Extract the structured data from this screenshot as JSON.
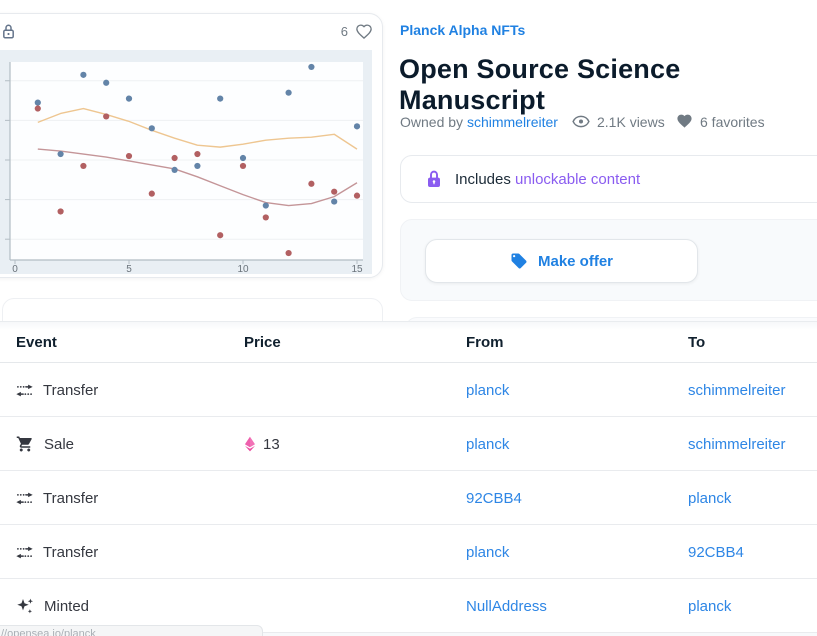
{
  "colors": {
    "accent_blue": "#2081e2",
    "link_blue": "#2e86e5",
    "purple": "#8a5cf0",
    "text_dark": "#04111d",
    "text_gray": "#707a83",
    "icon_dark": "#353840",
    "eth_pink_upper": "#f272b6",
    "eth_pink_lower": "#ec4aa0",
    "chart_bg": "#e9eff4",
    "plot_bg": "#fdfeff",
    "grid": "#eef1f3",
    "axis": "#b3bdc4",
    "tick_text": "#6a737b"
  },
  "media_card": {
    "favorite_count": "6"
  },
  "header": {
    "collection": "Planck Alpha NFTs",
    "title": "Open Source Science Manuscript",
    "owned_by_label": "Owned by",
    "owner": "schimmelreiter",
    "views": "2.1K views",
    "favorites": "6 favorites"
  },
  "unlockable": {
    "prefix": "Includes",
    "link_text": "unlockable content"
  },
  "offer": {
    "button_label": "Make offer"
  },
  "activity_table": {
    "columns": [
      "Event",
      "Price",
      "From",
      "To"
    ],
    "rows": [
      {
        "event": "Transfer",
        "icon": "transfer-icon",
        "price": "",
        "from": "planck",
        "to": "schimmelreiter"
      },
      {
        "event": "Sale",
        "icon": "cart-icon",
        "price": "13",
        "from": "planck",
        "to": "schimmelreiter"
      },
      {
        "event": "Transfer",
        "icon": "transfer-icon",
        "price": "",
        "from": "92CBB4",
        "to": "planck"
      },
      {
        "event": "Transfer",
        "icon": "transfer-icon",
        "price": "",
        "from": "planck",
        "to": "92CBB4"
      },
      {
        "event": "Minted",
        "icon": "sparkles-icon",
        "price": "",
        "from": "NullAddress",
        "to": "planck"
      }
    ]
  },
  "status_bar": {
    "link_preview": "//opensea.io/planck"
  },
  "chart_data": {
    "type": "scatter",
    "title": "",
    "xlabel": "",
    "ylabel": "",
    "x": [
      1,
      2,
      3,
      4,
      5,
      6,
      7,
      8,
      9,
      10,
      11,
      12,
      13,
      14,
      15
    ],
    "series": [
      {
        "name": "blue-points",
        "color": "#6384a8",
        "values": [
          7.9,
          5.3,
          9.3,
          8.9,
          8.1,
          6.6,
          4.5,
          4.7,
          8.1,
          5.1,
          2.7,
          8.4,
          9.7,
          2.9,
          6.7
        ]
      },
      {
        "name": "red-points",
        "color": "#b26062",
        "values": [
          7.6,
          2.4,
          4.7,
          7.2,
          5.2,
          3.3,
          5.1,
          5.3,
          1.2,
          4.7,
          2.1,
          0.3,
          3.8,
          3.4,
          3.2
        ]
      }
    ],
    "trend_lines": [
      {
        "name": "orange-trend",
        "color": "#eec691",
        "values": [
          6.9,
          7.35,
          7.6,
          7.3,
          6.95,
          6.5,
          6.1,
          5.75,
          5.65,
          5.8,
          6.0,
          6.1,
          6.15,
          6.3,
          5.55
        ]
      },
      {
        "name": "rose-trend",
        "color": "#c49598",
        "values": [
          5.55,
          5.45,
          5.3,
          5.15,
          4.95,
          4.75,
          4.55,
          4.15,
          3.7,
          3.25,
          2.85,
          2.7,
          2.8,
          3.15,
          3.85
        ]
      }
    ],
    "x_ticks": [
      0,
      5,
      10,
      15
    ],
    "xlim": [
      -0.25,
      15.35
    ],
    "ylim": [
      0,
      10.6
    ],
    "gridlines_y": [
      1,
      3,
      5,
      7,
      9
    ],
    "grid": true,
    "legend": false,
    "y_tick_labels_visible": false
  }
}
